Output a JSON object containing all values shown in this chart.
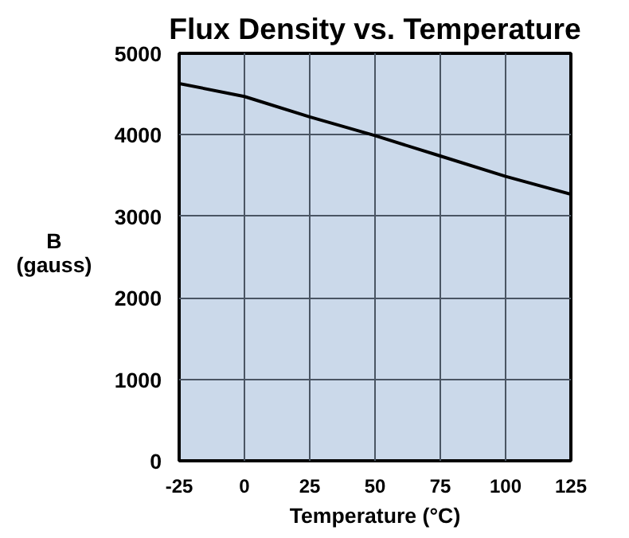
{
  "chart_data": {
    "type": "line",
    "title": "Flux Density vs. Temperature",
    "xlabel": "Temperature (°C)",
    "ylabel": "B\n(gauss)",
    "x": [
      -25,
      0,
      25,
      50,
      75,
      100,
      125
    ],
    "series": [
      {
        "color": "#000000",
        "values": [
          4630,
          4470,
          4220,
          3990,
          3740,
          3490,
          3270
        ]
      }
    ],
    "xlim": [
      -25,
      125
    ],
    "xticks": [
      -25,
      0,
      25,
      50,
      75,
      100,
      125
    ],
    "ylim": [
      0,
      5000
    ],
    "yticks": [
      0,
      1000,
      2000,
      3000,
      4000,
      5000
    ],
    "grid": true,
    "marker": "none",
    "line_style": "solid"
  }
}
